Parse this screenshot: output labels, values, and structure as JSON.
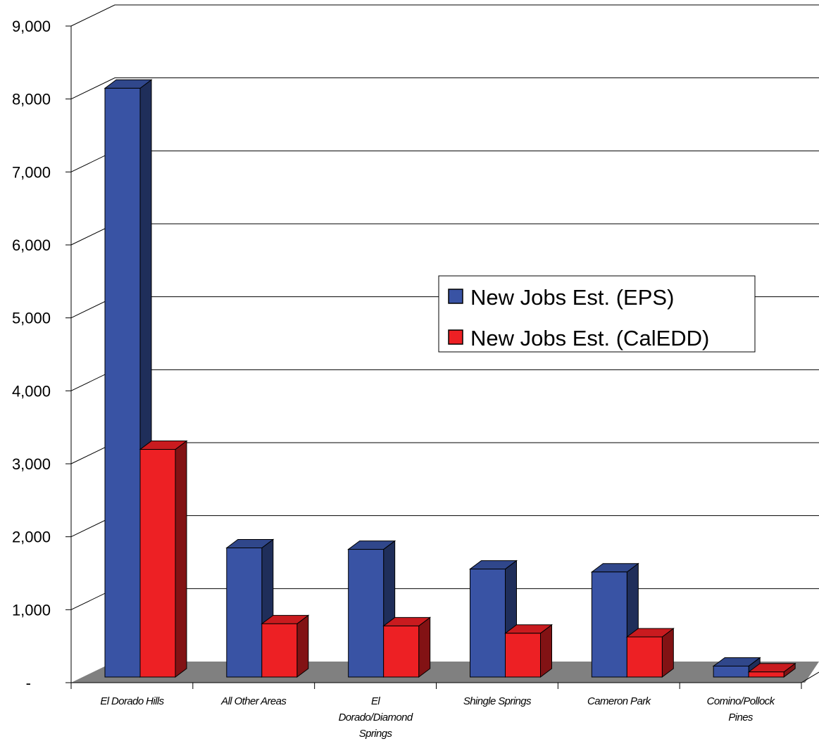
{
  "chart_data": {
    "type": "bar",
    "categories": [
      [
        "El Dorado Hills"
      ],
      [
        "All Other Areas"
      ],
      [
        "El",
        "Dorado/Diamond",
        "Springs"
      ],
      [
        "Shingle Springs"
      ],
      [
        "Cameron Park"
      ],
      [
        "Comino/Pollock",
        "Pines"
      ]
    ],
    "series": [
      {
        "name": "New Jobs Est. (EPS)",
        "color": "#3953A4",
        "values": [
          8070,
          1770,
          1750,
          1480,
          1440,
          150
        ]
      },
      {
        "name": "New Jobs Est. (CalEDD)",
        "color": "#ED2024",
        "values": [
          3120,
          730,
          700,
          600,
          550,
          70
        ]
      }
    ],
    "ylim": [
      0,
      9000
    ],
    "yticks": [
      {
        "value": 0,
        "label": "-"
      },
      {
        "value": 1000,
        "label": "1,000"
      },
      {
        "value": 2000,
        "label": "2,000"
      },
      {
        "value": 3000,
        "label": "3,000"
      },
      {
        "value": 4000,
        "label": "4,000"
      },
      {
        "value": 5000,
        "label": "5,000"
      },
      {
        "value": 6000,
        "label": "6,000"
      },
      {
        "value": 7000,
        "label": "7,000"
      },
      {
        "value": 8000,
        "label": "8,000"
      },
      {
        "value": 9000,
        "label": "9,000"
      }
    ],
    "grid": true,
    "legend_position": "right",
    "floor_color": "#808080"
  }
}
